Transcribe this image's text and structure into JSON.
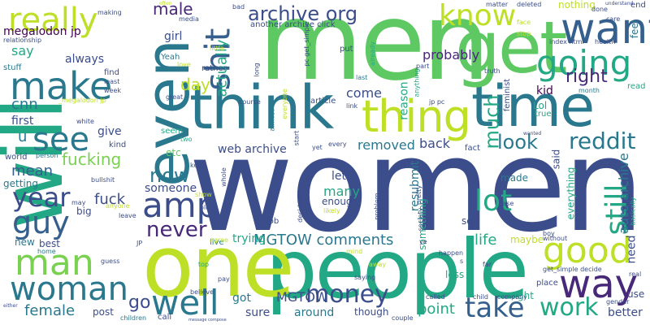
{
  "palette": {
    "navy": "#3b4d8a",
    "blue": "#35608d",
    "teal": "#2a788e",
    "green": "#22a884",
    "lime": "#7ad151",
    "yellow": "#bddf26",
    "purple": "#482878",
    "dark": "#440154",
    "mint": "#5ec962"
  },
  "words": [
    {
      "text": "women",
      "color": "navy"
    },
    {
      "text": "men",
      "color": "mint"
    },
    {
      "text": "people",
      "color": "green"
    },
    {
      "text": "one",
      "color": "yellow"
    },
    {
      "text": "will",
      "color": "green"
    },
    {
      "text": "even",
      "color": "teal"
    },
    {
      "text": "think",
      "color": "teal"
    },
    {
      "text": "time",
      "color": "teal"
    },
    {
      "text": "get",
      "color": "mint"
    },
    {
      "text": "thing",
      "color": "yellow"
    },
    {
      "text": "want",
      "color": "blue"
    },
    {
      "text": "make",
      "color": "teal"
    },
    {
      "text": "really",
      "color": "yellow"
    },
    {
      "text": "going",
      "color": "green"
    },
    {
      "text": "know",
      "color": "yellow"
    },
    {
      "text": "good",
      "color": "yellow"
    },
    {
      "text": "way",
      "color": "purple"
    },
    {
      "text": "see",
      "color": "teal"
    },
    {
      "text": "man",
      "color": "lime"
    },
    {
      "text": "woman",
      "color": "teal"
    },
    {
      "text": "guy",
      "color": "blue"
    },
    {
      "text": "year",
      "color": "navy"
    },
    {
      "text": "amp",
      "color": "navy"
    },
    {
      "text": "shit",
      "color": "blue"
    },
    {
      "text": "well",
      "color": "teal"
    },
    {
      "text": "work",
      "color": "green"
    },
    {
      "text": "take",
      "color": "blue"
    },
    {
      "text": "money",
      "color": "navy"
    },
    {
      "text": "still",
      "color": "green"
    },
    {
      "text": "lot",
      "color": "green"
    },
    {
      "text": "archive org",
      "color": "navy"
    },
    {
      "text": "reddit",
      "color": "teal"
    },
    {
      "text": "right",
      "color": "purple"
    },
    {
      "text": "look",
      "color": "teal"
    },
    {
      "text": "never",
      "color": "purple"
    },
    {
      "text": "now",
      "color": "teal"
    },
    {
      "text": "fucking",
      "color": "lime"
    },
    {
      "text": "cnn",
      "color": "teal"
    },
    {
      "text": "day",
      "color": "yellow"
    },
    {
      "text": "actually",
      "color": "green"
    },
    {
      "text": "much",
      "color": "green"
    },
    {
      "text": "female",
      "color": "teal"
    },
    {
      "text": "go",
      "color": "navy"
    },
    {
      "text": "MGTOW comments",
      "color": "teal"
    },
    {
      "text": "removed",
      "color": "teal"
    },
    {
      "text": "point",
      "color": "green"
    },
    {
      "text": "probably",
      "color": "purple"
    },
    {
      "text": "mean",
      "color": "blue"
    },
    {
      "text": "fuck",
      "color": "navy"
    },
    {
      "text": "u",
      "color": "teal"
    },
    {
      "text": "say",
      "color": "green"
    },
    {
      "text": "always",
      "color": "navy"
    },
    {
      "text": "male",
      "color": "purple"
    },
    {
      "text": "megalodon jp",
      "color": "dark"
    },
    {
      "text": "nothing",
      "color": "yellow"
    },
    {
      "text": "feel",
      "color": "teal"
    },
    {
      "text": "life",
      "color": "green"
    },
    {
      "text": "need",
      "color": "navy"
    },
    {
      "text": "auto archive",
      "color": "teal"
    },
    {
      "text": "MGTOW",
      "color": "navy"
    },
    {
      "text": "trying",
      "color": "green"
    },
    {
      "text": "web archive",
      "color": "navy"
    },
    {
      "text": "back",
      "color": "navy"
    },
    {
      "text": "reason",
      "color": "green"
    },
    {
      "text": "many",
      "color": "green"
    },
    {
      "text": "let",
      "color": "navy"
    },
    {
      "text": "resubmit",
      "color": "teal"
    },
    {
      "text": "sure",
      "color": "navy"
    },
    {
      "text": "around",
      "color": "teal"
    },
    {
      "text": "got",
      "color": "teal"
    },
    {
      "text": "new",
      "color": "teal"
    },
    {
      "text": "getting",
      "color": "teal"
    },
    {
      "text": "give",
      "color": "navy"
    },
    {
      "text": "first",
      "color": "navy"
    },
    {
      "text": "come",
      "color": "navy"
    },
    {
      "text": "kid",
      "color": "dark"
    },
    {
      "text": "girl",
      "color": "navy"
    },
    {
      "text": "Lol",
      "color": "green"
    },
    {
      "text": "said",
      "color": "navy"
    },
    {
      "text": "something",
      "color": "green"
    },
    {
      "text": "someone",
      "color": "navy"
    },
    {
      "text": "etc",
      "color": "mint"
    },
    {
      "text": "big",
      "color": "navy"
    },
    {
      "text": "end",
      "color": "navy"
    },
    {
      "text": "better",
      "color": "navy"
    },
    {
      "text": "post",
      "color": "navy"
    },
    {
      "text": "though",
      "color": "navy"
    },
    {
      "text": "sex",
      "color": "navy"
    },
    {
      "text": "maybe",
      "color": "yellow"
    },
    {
      "text": "everything",
      "color": "green"
    },
    {
      "text": "made",
      "color": "teal"
    },
    {
      "text": "enough",
      "color": "navy"
    },
    {
      "text": "feminist",
      "color": "navy"
    },
    {
      "text": "world",
      "color": "navy"
    },
    {
      "text": "best",
      "color": "navy"
    },
    {
      "text": "use",
      "color": "navy"
    },
    {
      "text": "less",
      "color": "green"
    },
    {
      "text": "might",
      "color": "green"
    },
    {
      "text": "place",
      "color": "navy"
    },
    {
      "text": "another archive click",
      "color": "navy"
    },
    {
      "text": "relationship",
      "color": "navy"
    },
    {
      "text": "stuff",
      "color": "teal"
    },
    {
      "text": "bullshit",
      "color": "navy"
    },
    {
      "text": "job",
      "color": "navy"
    },
    {
      "text": "live",
      "color": "teal"
    },
    {
      "text": "call",
      "color": "navy"
    },
    {
      "text": "gender",
      "color": "navy"
    },
    {
      "text": "children",
      "color": "teal"
    },
    {
      "text": "fact",
      "color": "navy"
    },
    {
      "text": "true",
      "color": "green"
    },
    {
      "text": "white",
      "color": "navy"
    },
    {
      "text": "kind",
      "color": "navy"
    },
    {
      "text": "find",
      "color": "navy"
    },
    {
      "text": "least",
      "color": "navy"
    },
    {
      "text": "week",
      "color": "navy"
    },
    {
      "text": "Yeah",
      "color": "teal"
    },
    {
      "text": "rather",
      "color": "navy"
    },
    {
      "text": "media",
      "color": "navy"
    },
    {
      "text": "bad",
      "color": "navy"
    },
    {
      "text": "put",
      "color": "navy"
    },
    {
      "text": "part",
      "color": "navy"
    },
    {
      "text": "already",
      "color": "green"
    },
    {
      "text": "anything",
      "color": "green"
    },
    {
      "text": "long",
      "color": "navy"
    },
    {
      "text": "course",
      "color": "navy"
    },
    {
      "text": "article",
      "color": "navy"
    },
    {
      "text": "link",
      "color": "navy"
    },
    {
      "text": "jp pc",
      "color": "navy"
    },
    {
      "text": "great",
      "color": "navy"
    },
    {
      "text": "seem",
      "color": "green"
    },
    {
      "text": "two",
      "color": "green"
    },
    {
      "text": "keep",
      "color": "navy"
    },
    {
      "text": "old",
      "color": "navy"
    },
    {
      "text": "pay",
      "color": "navy"
    },
    {
      "text": "top",
      "color": "green"
    },
    {
      "text": "believe",
      "color": "navy"
    },
    {
      "text": "show",
      "color": "yellow"
    },
    {
      "text": "agree",
      "color": "yellow"
    },
    {
      "text": "mind",
      "color": "yellow"
    },
    {
      "text": "happen",
      "color": "navy"
    },
    {
      "text": "saying",
      "color": "navy"
    },
    {
      "text": "far",
      "color": "navy"
    },
    {
      "text": "called",
      "color": "navy"
    },
    {
      "text": "child",
      "color": "navy"
    },
    {
      "text": "company",
      "color": "navy"
    },
    {
      "text": "couple",
      "color": "navy"
    },
    {
      "text": "case",
      "color": "navy"
    },
    {
      "text": "boy",
      "color": "navy"
    },
    {
      "text": "without",
      "color": "navy"
    },
    {
      "text": "basically",
      "color": "green"
    },
    {
      "text": "real",
      "color": "navy"
    },
    {
      "text": "read",
      "color": "green"
    },
    {
      "text": "health",
      "color": "navy"
    },
    {
      "text": "month",
      "color": "teal"
    },
    {
      "text": "index html",
      "color": "navy"
    },
    {
      "text": "stop",
      "color": "yellow"
    },
    {
      "text": "face",
      "color": "yellow"
    },
    {
      "text": "done",
      "color": "navy"
    },
    {
      "text": "care",
      "color": "navy"
    },
    {
      "text": "understand",
      "color": "navy"
    },
    {
      "text": "deleted",
      "color": "navy"
    },
    {
      "text": "matter",
      "color": "navy"
    },
    {
      "text": "making",
      "color": "navy"
    },
    {
      "text": "often",
      "color": "yellow"
    },
    {
      "text": "truth",
      "color": "navy"
    },
    {
      "text": "pc get_simple",
      "color": "navy"
    },
    {
      "text": "get_simple decide",
      "color": "navy"
    },
    {
      "text": "decide url",
      "color": "navy"
    },
    {
      "text": "pretty",
      "color": "navy"
    },
    {
      "text": "society",
      "color": "navy"
    },
    {
      "text": "problem",
      "color": "navy"
    },
    {
      "text": "everyone",
      "color": "yellow"
    },
    {
      "text": "almost",
      "color": "teal"
    },
    {
      "text": "start",
      "color": "navy"
    },
    {
      "text": "every",
      "color": "navy"
    },
    {
      "text": "yet",
      "color": "navy"
    },
    {
      "text": "likely",
      "color": "yellow"
    },
    {
      "text": "person",
      "color": "teal"
    },
    {
      "text": "may",
      "color": "navy"
    },
    {
      "text": "anyone",
      "color": "yellow"
    },
    {
      "text": "leave",
      "color": "navy"
    },
    {
      "text": "guess",
      "color": "navy"
    },
    {
      "text": "home",
      "color": "teal"
    },
    {
      "text": "whole",
      "color": "navy"
    },
    {
      "text": "little",
      "color": "yellow"
    },
    {
      "text": "love",
      "color": "yellow"
    },
    {
      "text": "fat",
      "color": "yellow"
    },
    {
      "text": "wanted",
      "color": "navy"
    },
    {
      "text": "last",
      "color": "teal"
    },
    {
      "text": "ye",
      "color": "navy"
    },
    {
      "text": "message compose",
      "color": "navy"
    },
    {
      "text": "either",
      "color": "navy"
    },
    {
      "text": "s",
      "color": "navy"
    },
    {
      "text": "away",
      "color": "yellow"
    },
    {
      "text": "JP",
      "color": "navy"
    },
    {
      "text": "_megalodon jp",
      "color": "yellow"
    }
  ]
}
